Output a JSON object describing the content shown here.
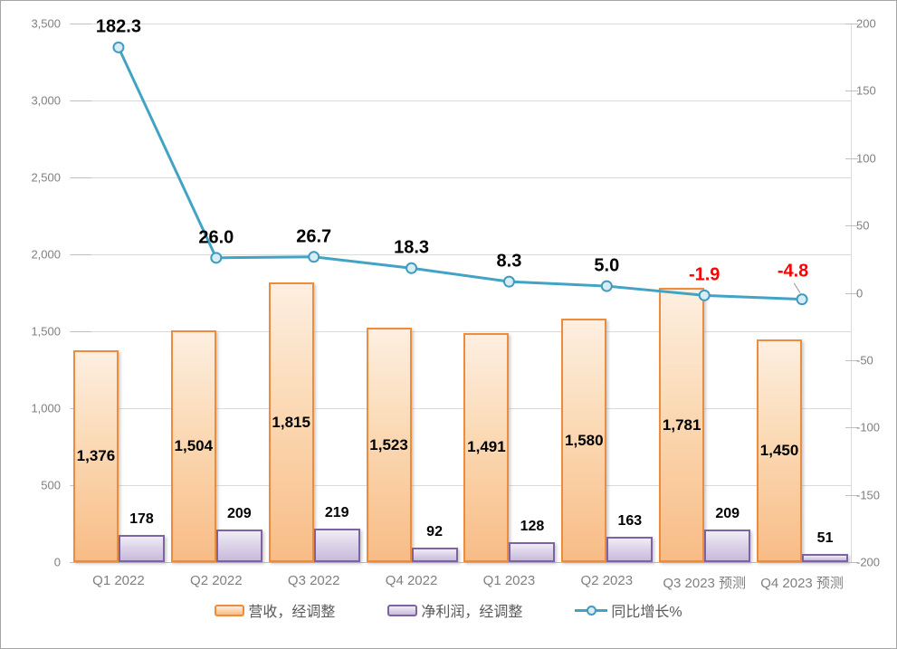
{
  "chart_data": {
    "type": "combo-bar-line",
    "categories": [
      "Q1 2022",
      "Q2 2022",
      "Q3 2022",
      "Q4 2022",
      "Q1 2023",
      "Q2 2023",
      "Q3 2023 预测",
      "Q4 2023 预测"
    ],
    "series": [
      {
        "name": "营收，经调整",
        "type": "bar",
        "axis": "left",
        "values": [
          1376,
          1504,
          1815,
          1523,
          1491,
          1580,
          1781,
          1450
        ],
        "labels": [
          "1,376",
          "1,504",
          "1,815",
          "1,523",
          "1,491",
          "1,580",
          "1,781",
          "1,450"
        ],
        "color": "#ee8c3d"
      },
      {
        "name": "净利润，经调整",
        "type": "bar",
        "axis": "left",
        "values": [
          178,
          209,
          219,
          92,
          128,
          163,
          209,
          51
        ],
        "labels": [
          "178",
          "209",
          "219",
          "92",
          "128",
          "163",
          "209",
          "51"
        ],
        "color": "#7e63a4"
      },
      {
        "name": "同比增长%",
        "type": "line",
        "axis": "right",
        "values": [
          182.3,
          26.0,
          26.7,
          18.3,
          8.3,
          5.0,
          -1.9,
          -4.8
        ],
        "labels": [
          "182.3",
          "26.0",
          "26.7",
          "18.3",
          "8.3",
          "5.0",
          "-1.9",
          "-4.8"
        ],
        "label_colors": [
          "#000000",
          "#000000",
          "#000000",
          "#000000",
          "#000000",
          "#000000",
          "#ff0000",
          "#ff0000"
        ],
        "color": "#42a3c5"
      }
    ],
    "left_axis": {
      "min": 0,
      "max": 3500,
      "step": 500,
      "tick_labels": [
        "0",
        "500",
        "1,000",
        "1,500",
        "2,000",
        "2,500",
        "3,000",
        "3,500"
      ]
    },
    "right_axis": {
      "min": -200,
      "max": 200,
      "step": 50,
      "tick_labels": [
        "200",
        "150",
        "100",
        "50",
        "0",
        "-50",
        "-100",
        "-150",
        "-200"
      ]
    },
    "grid": true,
    "legend_position": "bottom",
    "colors": {
      "revenue_border": "#ee8c3d",
      "profit_border": "#7e63a4",
      "line": "#42a3c5",
      "negative_label": "#ff0000",
      "axis_text": "#808080",
      "legend_text": "#595959"
    }
  }
}
